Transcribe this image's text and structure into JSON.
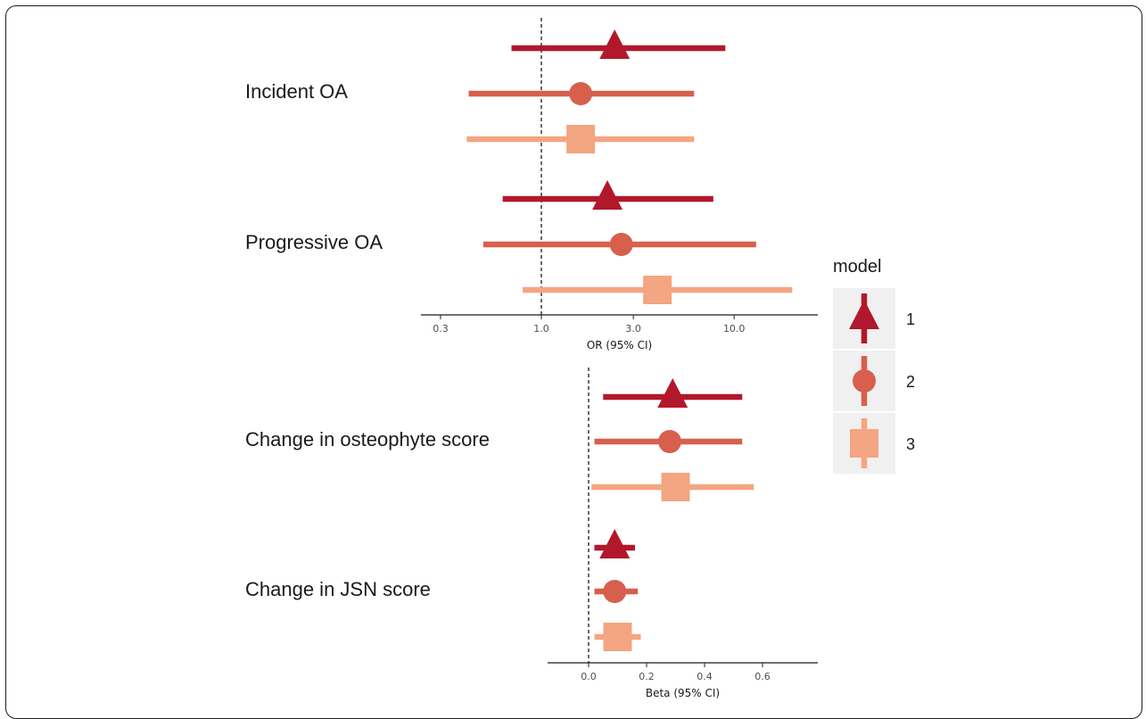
{
  "chart_data": [
    {
      "type": "forest",
      "title": "",
      "xlabel": "OR (95% CI)",
      "x_scale": "log",
      "xlim": [
        0.23,
        25
      ],
      "xticks": [
        0.3,
        1.0,
        3.0,
        10.0
      ],
      "xtick_labels": [
        "0.3",
        "1.0",
        "3.0",
        "10.0"
      ],
      "reference_line": 1.0,
      "outcomes": [
        {
          "label": "Incident OA",
          "estimates": [
            {
              "model": "1",
              "est": 2.4,
              "lo": 0.7,
              "hi": 9.0
            },
            {
              "model": "2",
              "est": 1.6,
              "lo": 0.42,
              "hi": 6.2
            },
            {
              "model": "3",
              "est": 1.6,
              "lo": 0.41,
              "hi": 6.2
            }
          ]
        },
        {
          "label": "Progressive OA",
          "estimates": [
            {
              "model": "1",
              "est": 2.2,
              "lo": 0.63,
              "hi": 7.8
            },
            {
              "model": "2",
              "est": 2.6,
              "lo": 0.5,
              "hi": 13.0
            },
            {
              "model": "3",
              "est": 4.0,
              "lo": 0.8,
              "hi": 20.0
            }
          ]
        }
      ]
    },
    {
      "type": "forest",
      "title": "",
      "xlabel": "Beta (95% CI)",
      "x_scale": "linear",
      "xlim": [
        -0.14,
        0.79
      ],
      "xticks": [
        0.0,
        0.2,
        0.4,
        0.6
      ],
      "xtick_labels": [
        "0.0",
        "0.2",
        "0.4",
        "0.6"
      ],
      "reference_line": 0.0,
      "outcomes": [
        {
          "label": "Change in osteophyte score",
          "estimates": [
            {
              "model": "1",
              "est": 0.29,
              "lo": 0.05,
              "hi": 0.53
            },
            {
              "model": "2",
              "est": 0.28,
              "lo": 0.02,
              "hi": 0.53
            },
            {
              "model": "3",
              "est": 0.3,
              "lo": 0.01,
              "hi": 0.57
            }
          ]
        },
        {
          "label": "Change in JSN score",
          "estimates": [
            {
              "model": "1",
              "est": 0.09,
              "lo": 0.02,
              "hi": 0.16
            },
            {
              "model": "2",
              "est": 0.09,
              "lo": 0.02,
              "hi": 0.17
            },
            {
              "model": "3",
              "est": 0.1,
              "lo": 0.02,
              "hi": 0.18
            }
          ]
        }
      ]
    }
  ],
  "legend": {
    "title": "model",
    "placement": "right",
    "items": [
      {
        "label": "1",
        "shape": "triangle",
        "color": "#b2182b"
      },
      {
        "label": "2",
        "shape": "circle",
        "color": "#d6604d"
      },
      {
        "label": "3",
        "shape": "square",
        "color": "#f4a582"
      }
    ],
    "background": "#f0f0f0"
  }
}
